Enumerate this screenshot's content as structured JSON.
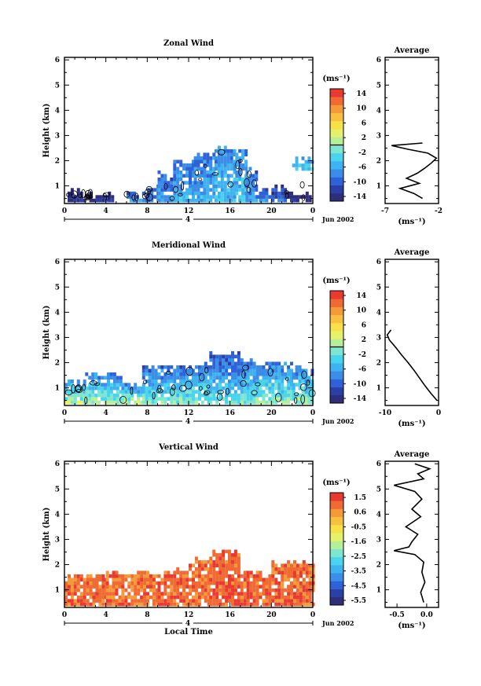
{
  "panels": [
    {
      "title": "Zonal Wind",
      "ylabel": "Height (km)",
      "y_ticks": [
        "1",
        "2",
        "3",
        "4",
        "5",
        "6"
      ],
      "x_ticks": [
        "0",
        "4",
        "8",
        "12",
        "16",
        "20",
        "0"
      ],
      "date_day": "4",
      "date_label": "Jun 2002",
      "colorbar_unit": "(ms⁻¹)",
      "colorbar_ticks": [
        "14",
        "10",
        "6",
        "2",
        "-2",
        "-6",
        "-10",
        "-14"
      ],
      "average_title": "Average",
      "average_xticks": [
        "-7",
        "-2"
      ],
      "average_xlabel": "(ms⁻¹)",
      "average_y_ticks": [
        "1",
        "2",
        "3",
        "4",
        "5",
        "6"
      ]
    },
    {
      "title": "Meridional Wind",
      "ylabel": "Height (km)",
      "y_ticks": [
        "1",
        "2",
        "3",
        "4",
        "5",
        "6"
      ],
      "x_ticks": [
        "0",
        "4",
        "8",
        "12",
        "16",
        "20",
        "0"
      ],
      "date_day": "4",
      "date_label": "Jun 2002",
      "colorbar_unit": "(ms⁻¹)",
      "colorbar_ticks": [
        "14",
        "10",
        "6",
        "2",
        "-2",
        "-6",
        "-10",
        "-14"
      ],
      "average_title": "Average",
      "average_xticks": [
        "-10",
        "0"
      ],
      "average_xlabel": "(ms⁻¹)",
      "average_y_ticks": [
        "1",
        "2",
        "3",
        "4",
        "5",
        "6"
      ]
    },
    {
      "title": "Vertical Wind",
      "ylabel": "Height (km)",
      "y_ticks": [
        "1",
        "2",
        "3",
        "4",
        "5",
        "6"
      ],
      "x_ticks": [
        "0",
        "4",
        "8",
        "12",
        "16",
        "20",
        "0"
      ],
      "date_day": "4",
      "date_label": "Jun 2002",
      "xlabel": "Local Time",
      "colorbar_unit": "(ms⁻¹)",
      "colorbar_ticks": [
        "1.5",
        "0.6",
        "-0.5",
        "-1.6",
        "-2.5",
        "-3.5",
        "-4.5",
        "-5.5"
      ],
      "average_title": "Average",
      "average_xticks": [
        "-0.5",
        "0.0"
      ],
      "average_xlabel": "(ms⁻¹)",
      "average_y_ticks": [
        "1",
        "2",
        "3",
        "4",
        "5",
        "6"
      ]
    }
  ],
  "colors": {
    "colormap": [
      "#2e2e7a",
      "#2b3fa6",
      "#2f62d6",
      "#3b8ee8",
      "#3fb2f0",
      "#47d4ec",
      "#7ee6d0",
      "#b6ef9a",
      "#e6f06a",
      "#f7e04a",
      "#f7c040",
      "#f59a3a",
      "#f06a34",
      "#e83a30"
    ]
  },
  "chart_data": [
    {
      "type": "heatmap",
      "title": "Zonal Wind",
      "ylabel": "Height (km)",
      "x_unit": "local time (h)",
      "xlim": [
        0,
        24
      ],
      "ylim": [
        0.3,
        6.1
      ],
      "color_range": [
        -14,
        14
      ],
      "contour_level": 0,
      "echo_extent": [
        {
          "x0": 0.3,
          "x1": 1.8,
          "top": 0.7,
          "v": -12
        },
        {
          "x0": 1.8,
          "x1": 3.0,
          "top": 0.55,
          "v": -12
        },
        {
          "x0": 3.0,
          "x1": 4.5,
          "top": 0.6,
          "v": -11
        },
        {
          "x0": 6.0,
          "x1": 8.0,
          "top": 0.6,
          "v": -7
        },
        {
          "x0": 8.0,
          "x1": 9.0,
          "top": 1.0,
          "v": -7
        },
        {
          "x0": 9.0,
          "x1": 10.5,
          "top": 1.4,
          "v": -6
        },
        {
          "x0": 10.5,
          "x1": 12.5,
          "top": 1.9,
          "v": -5
        },
        {
          "x0": 12.5,
          "x1": 14.5,
          "top": 2.2,
          "v": -5
        },
        {
          "x0": 14.5,
          "x1": 16.5,
          "top": 2.45,
          "v": -4
        },
        {
          "x0": 16.5,
          "x1": 17.5,
          "top": 2.3,
          "v": -4
        },
        {
          "x0": 17.5,
          "x1": 18.5,
          "top": 1.6,
          "v": -6
        },
        {
          "x0": 18.5,
          "x1": 20.0,
          "top": 0.8,
          "v": -7
        },
        {
          "x0": 20.0,
          "x1": 21.5,
          "top": 0.9,
          "v": -9
        },
        {
          "x0": 21.5,
          "x1": 23.8,
          "top": 0.6,
          "v": -12
        },
        {
          "x0": 22.0,
          "x1": 24.0,
          "top": 2.0,
          "bottom": 1.6,
          "v": -3
        }
      ],
      "average_profile": {
        "xlim": [
          -7,
          -2
        ],
        "height": [
          0.5,
          0.7,
          0.9,
          1.1,
          1.3,
          1.5,
          1.7,
          1.9,
          2.1,
          2.3,
          2.45,
          2.6,
          2.7
        ],
        "value": [
          -3.5,
          -4.3,
          -5.6,
          -3.8,
          -5.0,
          -4.0,
          -3.3,
          -2.7,
          -2.2,
          -3.0,
          -4.8,
          -6.4,
          -3.5
        ]
      }
    },
    {
      "type": "heatmap",
      "title": "Meridional Wind",
      "ylabel": "Height (km)",
      "x_unit": "local time (h)",
      "xlim": [
        0,
        24
      ],
      "ylim": [
        0.3,
        6.1
      ],
      "color_range": [
        -14,
        14
      ],
      "contour_level": 0,
      "echo_extent": [
        {
          "x0": 0.0,
          "x1": 2.0,
          "top": 1.2,
          "v": -3
        },
        {
          "x0": 2.0,
          "x1": 5.5,
          "top": 1.5,
          "v": -4
        },
        {
          "x0": 5.5,
          "x1": 7.5,
          "top": 1.1,
          "v": -3
        },
        {
          "x0": 7.5,
          "x1": 9.0,
          "top": 1.7,
          "v": -5
        },
        {
          "x0": 9.0,
          "x1": 12.0,
          "top": 1.8,
          "v": -5
        },
        {
          "x0": 12.0,
          "x1": 14.0,
          "top": 1.9,
          "v": -5
        },
        {
          "x0": 14.0,
          "x1": 17.0,
          "top": 2.3,
          "v": -6
        },
        {
          "x0": 17.0,
          "x1": 18.5,
          "top": 2.0,
          "v": -5
        },
        {
          "x0": 18.5,
          "x1": 22.0,
          "top": 1.9,
          "v": -4
        },
        {
          "x0": 22.0,
          "x1": 24.0,
          "top": 1.7,
          "v": -4
        }
      ],
      "average_profile": {
        "xlim": [
          -10,
          0
        ],
        "height": [
          0.5,
          0.8,
          1.1,
          1.4,
          1.7,
          2.0,
          2.3,
          2.6,
          2.9,
          3.1,
          3.3
        ],
        "value": [
          -0.3,
          -1.5,
          -2.6,
          -3.6,
          -4.6,
          -5.7,
          -6.9,
          -8.0,
          -9.2,
          -9.6,
          -8.9
        ]
      }
    },
    {
      "type": "heatmap",
      "title": "Vertical Wind",
      "ylabel": "Height (km)",
      "xlabel": "Local Time",
      "x_unit": "local time (h)",
      "xlim": [
        0,
        24
      ],
      "ylim": [
        0.3,
        6.1
      ],
      "color_range": [
        -5.5,
        1.5
      ],
      "echo_extent": [
        {
          "x0": 0.0,
          "x1": 4.0,
          "top": 1.5,
          "v": 0.8
        },
        {
          "x0": 4.0,
          "x1": 9.0,
          "top": 1.6,
          "v": 0.7
        },
        {
          "x0": 9.0,
          "x1": 12.0,
          "top": 1.7,
          "v": 0.8
        },
        {
          "x0": 12.0,
          "x1": 14.0,
          "top": 2.1,
          "v": 0.7
        },
        {
          "x0": 14.0,
          "x1": 17.0,
          "top": 2.4,
          "v": 0.9
        },
        {
          "x0": 17.0,
          "x1": 20.0,
          "top": 1.6,
          "v": 0.8
        },
        {
          "x0": 20.0,
          "x1": 24.0,
          "top": 2.0,
          "v": 0.8
        }
      ],
      "average_profile": {
        "xlim": [
          -0.7,
          0.2
        ],
        "height": [
          0.5,
          0.9,
          1.3,
          1.7,
          2.1,
          2.4,
          2.55,
          2.7,
          2.9,
          3.2,
          3.5,
          3.9,
          4.2,
          4.6,
          4.9,
          5.15,
          5.4,
          5.6,
          5.8,
          6.0
        ],
        "value": [
          -0.05,
          -0.1,
          -0.03,
          -0.08,
          -0.05,
          -0.2,
          -0.55,
          -0.3,
          -0.25,
          -0.15,
          -0.35,
          -0.1,
          -0.25,
          -0.08,
          -0.2,
          -0.55,
          -0.05,
          -0.15,
          0.05,
          -0.2
        ]
      }
    }
  ]
}
